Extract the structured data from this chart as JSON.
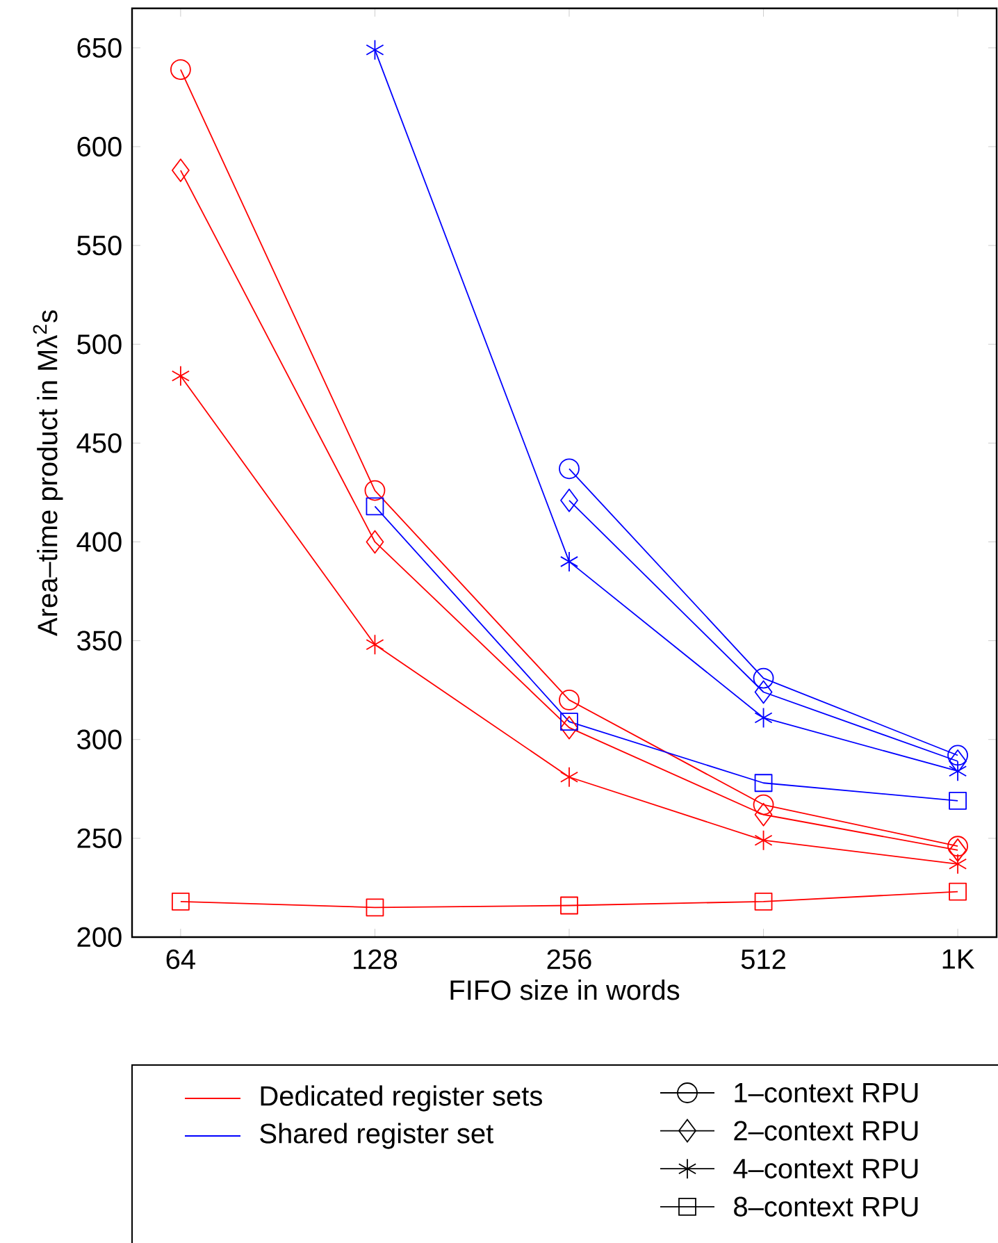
{
  "chart_data": {
    "type": "line",
    "xlabel": "FIFO size in words",
    "ylabel": "Area–time product in Mλ$^{2}$s",
    "categories": [
      "64",
      "128",
      "256",
      "512",
      "1K"
    ],
    "ylim": [
      200,
      670
    ],
    "yticks": [
      200,
      250,
      300,
      350,
      400,
      450,
      500,
      550,
      600,
      650
    ],
    "grid": false,
    "legend": "bottom",
    "series": [
      {
        "color": "#ff0000",
        "marker": "circle",
        "values": [
          639,
          426,
          320,
          267,
          246
        ]
      },
      {
        "color": "#ff0000",
        "marker": "diamond",
        "values": [
          588,
          400,
          306,
          262,
          244
        ]
      },
      {
        "color": "#ff0000",
        "marker": "cross",
        "values": [
          484,
          348,
          281,
          249,
          237
        ]
      },
      {
        "color": "#ff0000",
        "marker": "square",
        "values": [
          218,
          215,
          216,
          218,
          223
        ]
      },
      {
        "color": "#0000ff",
        "marker": "circle",
        "values": [
          null,
          null,
          437,
          331,
          292
        ]
      },
      {
        "color": "#0000ff",
        "marker": "diamond",
        "values": [
          null,
          null,
          421,
          324,
          289
        ]
      },
      {
        "color": "#0000ff",
        "marker": "cross",
        "values": [
          null,
          649,
          390,
          311,
          284
        ]
      },
      {
        "color": "#0000ff",
        "marker": "square",
        "values": [
          null,
          418,
          309,
          278,
          269
        ]
      },
      {
        "name": "Dedicated register sets",
        "color": "#ff0000",
        "marker": "none",
        "values": [
          null,
          null,
          null,
          null,
          null
        ]
      },
      {
        "name": "Shared register set",
        "color": "#0000ff",
        "marker": "none",
        "values": [
          null,
          null,
          null,
          null,
          null
        ]
      },
      {
        "name": "1–context RPU",
        "color": "#000000",
        "marker": "circle",
        "values": [
          null,
          null,
          null,
          null,
          null
        ]
      },
      {
        "name": "2–context RPU",
        "color": "#000000",
        "marker": "diamond",
        "values": [
          null,
          null,
          null,
          null,
          null
        ]
      },
      {
        "name": "4–context RPU",
        "color": "#000000",
        "marker": "cross",
        "values": [
          null,
          null,
          null,
          null,
          null
        ]
      },
      {
        "name": "8–context RPU",
        "color": "#000000",
        "marker": "square",
        "values": [
          null,
          null,
          null,
          null,
          null
        ]
      }
    ]
  }
}
